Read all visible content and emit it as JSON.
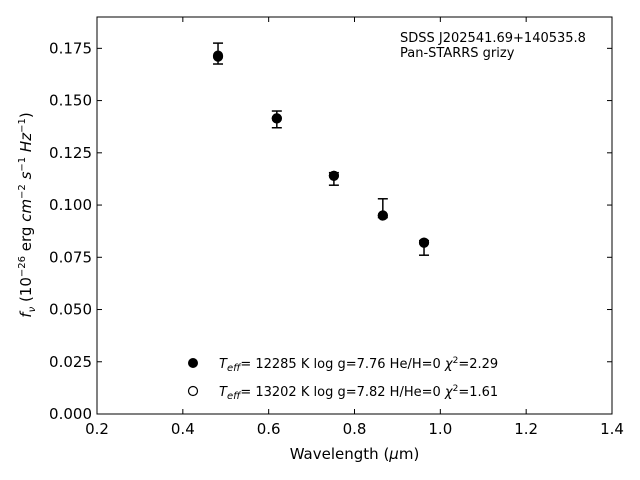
{
  "chart_data": {
    "type": "scatter",
    "xlabel": "Wavelength (μm)",
    "ylabel": "f_ν (10^-26 erg cm^-2 s^-1 Hz^-1)",
    "xlim": [
      0.2,
      1.4
    ],
    "ylim": [
      0.0,
      0.19
    ],
    "xticks": [
      "0.2",
      "0.4",
      "0.6",
      "0.8",
      "1.0",
      "1.2",
      "1.4"
    ],
    "yticks": [
      "0.000",
      "0.025",
      "0.050",
      "0.075",
      "0.100",
      "0.125",
      "0.150",
      "0.175"
    ],
    "annotation": [
      "SDSS J202541.69+140535.8",
      "Pan-STARRS grizy"
    ],
    "observed": {
      "x": [
        0.482,
        0.619,
        0.752,
        0.866,
        0.962
      ],
      "y": [
        0.1725,
        0.141,
        0.1125,
        0.0985,
        0.0795
      ],
      "yerr": [
        0.005,
        0.004,
        0.003,
        0.0045,
        0.0035
      ]
    },
    "series": [
      {
        "name": "T_eff= 12285 K  log g=7.76  He/H=0  χ²=2.29",
        "marker": "filled-circle",
        "x": [
          0.482,
          0.619,
          0.752,
          0.866,
          0.962
        ],
        "y": [
          0.171,
          0.1415,
          0.114,
          0.095,
          0.082
        ]
      },
      {
        "name": "T_eff= 13202 K  log g=7.82  H/He=0  χ²=1.61",
        "marker": "open-circle",
        "x": [
          0.482,
          0.619,
          0.752,
          0.866,
          0.962
        ],
        "y": [
          0.1715,
          0.1415,
          0.114,
          0.095,
          0.082
        ]
      }
    ],
    "legend_position": "lower-center",
    "grid": false
  }
}
